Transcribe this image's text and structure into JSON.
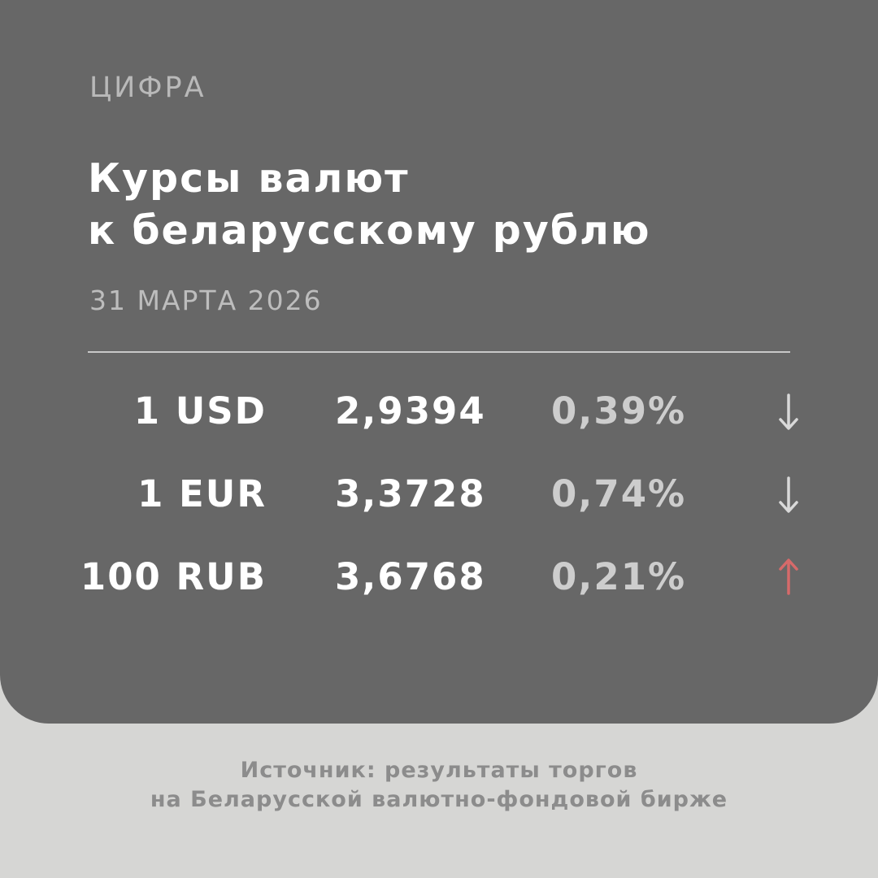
{
  "kicker": "ЦИФРА",
  "title": {
    "line1": "Курсы валют",
    "line2": "к беларусскому рублю"
  },
  "date": "31 МАРТА 2026",
  "rates": [
    {
      "currency": "1 USD",
      "rate": "2,9394",
      "change": "0,39%",
      "direction": "down",
      "arrow_color": "#d9d9d9"
    },
    {
      "currency": "1 EUR",
      "rate": "3,3728",
      "change": "0,74%",
      "direction": "down",
      "arrow_color": "#d9d9d9"
    },
    {
      "currency": "100 RUB",
      "rate": "3,6768",
      "change": "0,21%",
      "direction": "up",
      "arrow_color": "#d66a6a"
    }
  ],
  "footer": {
    "line1": "Источник: результаты торгов",
    "line2": "на Беларусской валютно-фондовой бирже"
  },
  "colors": {
    "card": "#676767",
    "background": "#d6d6d4"
  }
}
